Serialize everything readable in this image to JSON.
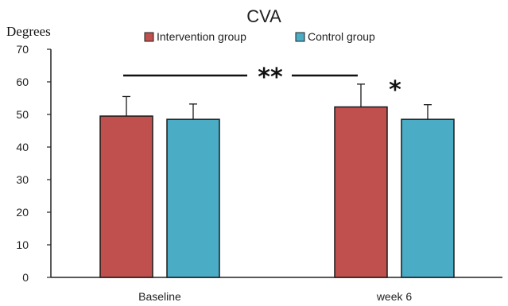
{
  "chart_data": {
    "type": "bar",
    "title": "CVA",
    "ylabel": "Degrees",
    "xlabel": "",
    "categories": [
      "Baseline",
      "week 6"
    ],
    "ylim": [
      0,
      70
    ],
    "yticks": [
      0,
      10,
      20,
      30,
      40,
      50,
      60,
      70
    ],
    "grid": false,
    "legend_position": "top-center",
    "series": [
      {
        "name": "Intervention group",
        "color": "#c0504d",
        "values": [
          49.5,
          52.3
        ],
        "errors": [
          6.0,
          7.0
        ]
      },
      {
        "name": "Control group",
        "color": "#4bacc6",
        "values": [
          48.5,
          48.5
        ],
        "errors": [
          4.7,
          4.5
        ]
      }
    ],
    "annotations": {
      "between_groups_marker": "**",
      "week6_marker": "*"
    }
  }
}
